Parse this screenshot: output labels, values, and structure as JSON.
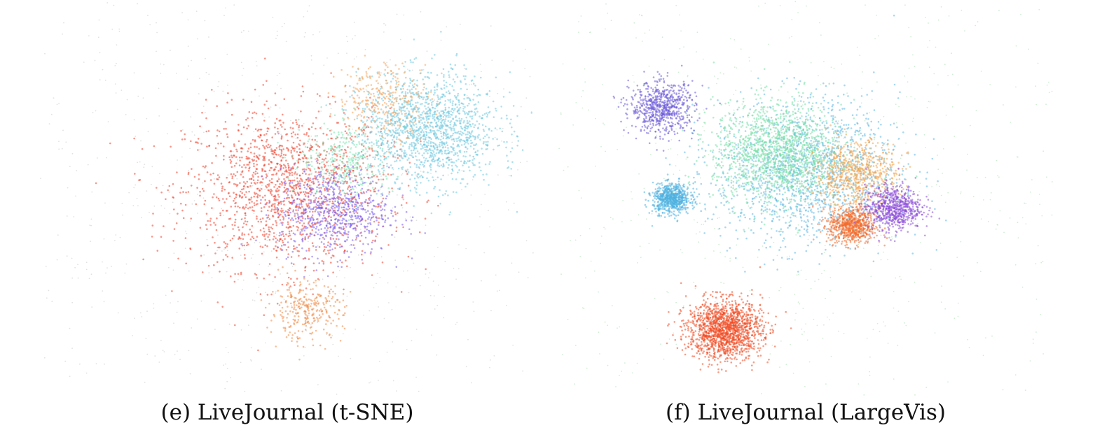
{
  "figure": {
    "panels": [
      {
        "caption": "(e) LiveJournal (t-SNE)"
      },
      {
        "caption": "(f) LiveJournal (LargeVis)"
      }
    ]
  },
  "chart_data": [
    {
      "type": "scatter",
      "title": "(e) LiveJournal (t-SNE)",
      "axes_visible": false,
      "grid": false,
      "legend": "none",
      "description_of_marks": "2D embedding of LiveJournal graph nodes colored by community",
      "clusters": [
        {
          "id": "red-core",
          "color": "#f0402a",
          "cx": 0.0,
          "cy": 0.05,
          "spread": 0.22,
          "density": "very-high"
        },
        {
          "id": "blue-violet-arm",
          "color": "#7a5cf0",
          "cx": 0.2,
          "cy": -0.07,
          "spread": 0.12,
          "density": "high"
        },
        {
          "id": "cyan-blob",
          "color": "#6fc9e0",
          "cx": 0.61,
          "cy": 0.38,
          "spread": 0.15,
          "density": "very-high"
        },
        {
          "id": "orange-upper",
          "color": "#f5a45b",
          "cx": 0.42,
          "cy": 0.55,
          "spread": 0.1,
          "density": "medium"
        },
        {
          "id": "orange-lower",
          "color": "#f08a45",
          "cx": 0.08,
          "cy": -0.62,
          "spread": 0.08,
          "density": "medium"
        },
        {
          "id": "green-upper",
          "color": "#7fe3b2",
          "cx": 0.26,
          "cy": 0.22,
          "spread": 0.1,
          "density": "medium"
        },
        {
          "id": "background-halo",
          "color": "#bdbdbd",
          "cx": 0.0,
          "cy": 0.0,
          "spread": 0.85,
          "density": "low"
        }
      ]
    },
    {
      "type": "scatter",
      "title": "(f) LiveJournal (LargeVis)",
      "axes_visible": false,
      "grid": false,
      "legend": "none",
      "description_of_marks": "2D embedding of LiveJournal graph nodes colored by community",
      "clusters": [
        {
          "id": "central-mass",
          "color": "#5fb8e6",
          "cx": 0.0,
          "cy": 0.15,
          "spread": 0.2,
          "density": "very-high"
        },
        {
          "id": "central-green",
          "color": "#78e0a8",
          "cx": -0.12,
          "cy": 0.25,
          "spread": 0.14,
          "density": "very-high"
        },
        {
          "id": "central-orange",
          "color": "#f2a24c",
          "cx": 0.22,
          "cy": 0.13,
          "spread": 0.09,
          "density": "high"
        },
        {
          "id": "purple-upper-left",
          "color": "#6c5ad8",
          "cx": -0.62,
          "cy": 0.5,
          "spread": 0.07,
          "density": "high"
        },
        {
          "id": "red-orange-bottom",
          "color": "#f04a22",
          "cx": -0.35,
          "cy": -0.72,
          "spread": 0.08,
          "density": "very-high"
        },
        {
          "id": "orange-right",
          "color": "#f26a2a",
          "cx": 0.2,
          "cy": -0.15,
          "spread": 0.05,
          "density": "high"
        },
        {
          "id": "purple-right",
          "color": "#8a4ad8",
          "cx": 0.38,
          "cy": -0.05,
          "spread": 0.06,
          "density": "high"
        },
        {
          "id": "cyan-left",
          "color": "#4cb0e0",
          "cx": -0.58,
          "cy": 0.0,
          "spread": 0.04,
          "density": "high"
        },
        {
          "id": "satellite-clusters",
          "color": "#9ad7a0",
          "cx": 0.0,
          "cy": 0.0,
          "spread": 0.9,
          "density": "low"
        }
      ]
    }
  ]
}
